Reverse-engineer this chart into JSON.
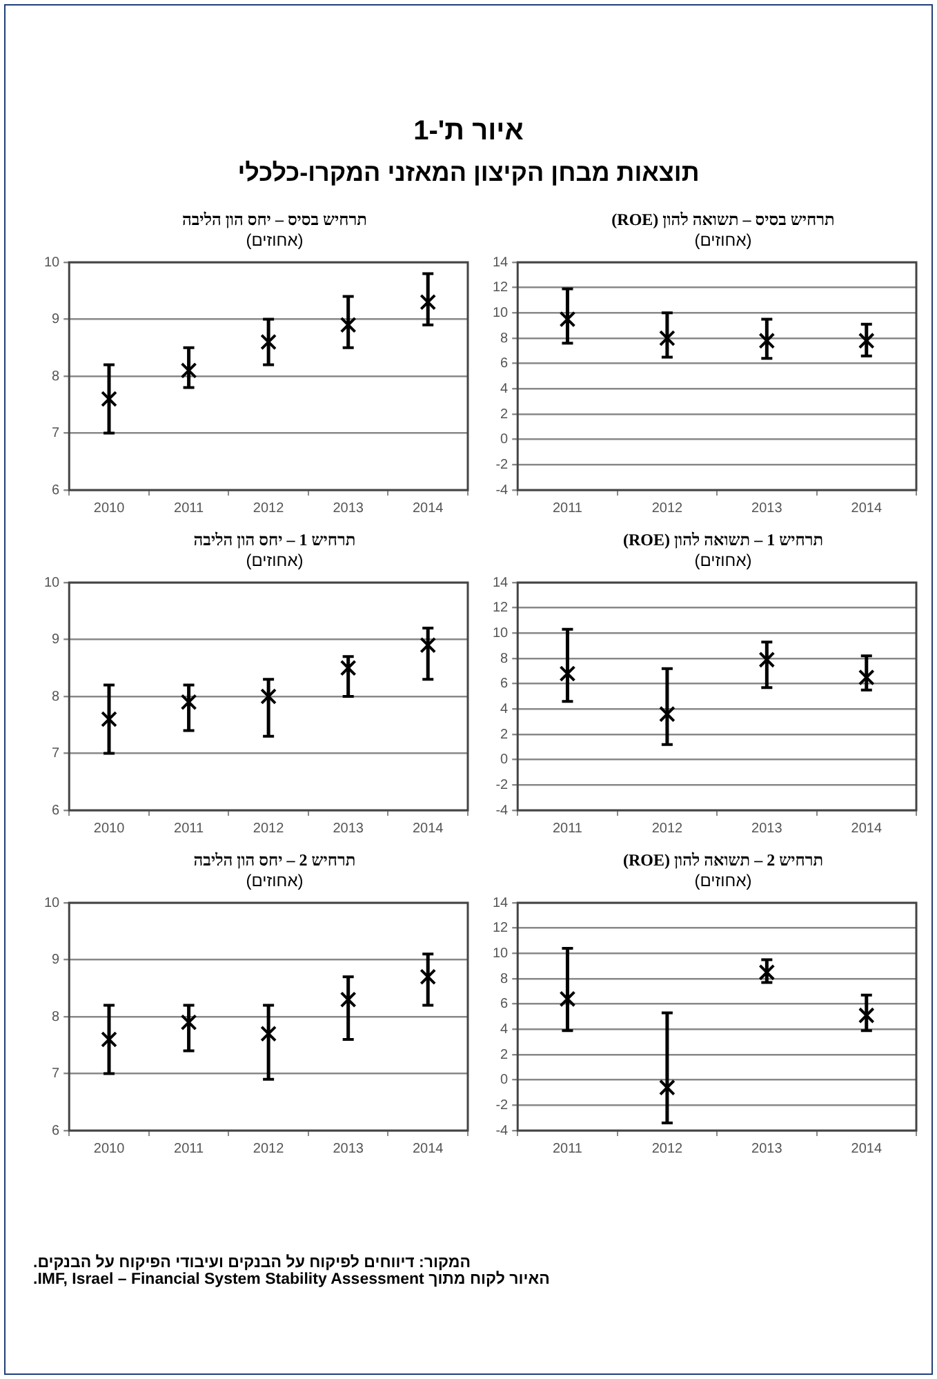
{
  "chart_data": [
    {
      "type": "other",
      "title": "איור ת'-1",
      "subtitle": "תוצאות מבחן הקיצון המאזני המקרו-כלכלי",
      "annotations": [
        "המקור: דיווחים לפיקוח על הבנקים ועיבודי הפיקוח על הבנקים.",
        "האיור לקוח מתוך IMF, Israel – Financial System Stability Assessment."
      ]
    },
    {
      "type": "scatter",
      "title": "תרחיש בסיס – תשואה להון (ROE)",
      "subtitle": "(אחוזים)",
      "categories": [
        "2011",
        "2012",
        "2013",
        "2014"
      ],
      "values": [
        9.5,
        8.0,
        7.8,
        7.8
      ],
      "errors": [
        [
          7.6,
          11.9
        ],
        [
          6.5,
          10.0
        ],
        [
          6.4,
          9.5
        ],
        [
          6.6,
          9.1
        ]
      ],
      "color": "#000000",
      "marker": "cross",
      "ylim": [
        -4,
        14
      ],
      "yticks": [
        -4,
        -2,
        0,
        2,
        4,
        6,
        8,
        10,
        12,
        14
      ],
      "grid": "y",
      "legend": false
    },
    {
      "type": "scatter",
      "title": "תרחיש בסיס – יחס הון הליבה",
      "subtitle": "(אחוזים)",
      "categories": [
        "2010",
        "2011",
        "2012",
        "2013",
        "2014"
      ],
      "values": [
        7.6,
        8.1,
        8.6,
        8.9,
        9.3
      ],
      "errors": [
        [
          7.0,
          8.2
        ],
        [
          7.8,
          8.5
        ],
        [
          8.2,
          9.0
        ],
        [
          8.5,
          9.4
        ],
        [
          8.9,
          9.8
        ]
      ],
      "color": "#000000",
      "marker": "cross",
      "ylim": [
        6,
        10
      ],
      "yticks": [
        6,
        7,
        8,
        9,
        10
      ],
      "grid": "y",
      "legend": false
    },
    {
      "type": "scatter",
      "title": "תרחיש 1 – תשואה להון (ROE)",
      "subtitle": "(אחוזים)",
      "categories": [
        "2011",
        "2012",
        "2013",
        "2014"
      ],
      "values": [
        6.8,
        3.6,
        7.9,
        6.5
      ],
      "errors": [
        [
          4.6,
          10.3
        ],
        [
          1.2,
          7.2
        ],
        [
          5.7,
          9.3
        ],
        [
          5.5,
          8.2
        ]
      ],
      "color": "#000000",
      "marker": "cross",
      "ylim": [
        -4,
        14
      ],
      "yticks": [
        -4,
        -2,
        0,
        2,
        4,
        6,
        8,
        10,
        12,
        14
      ],
      "grid": "y",
      "legend": false
    },
    {
      "type": "scatter",
      "title": "תרחיש 1 – יחס הון הליבה",
      "subtitle": "(אחוזים)",
      "categories": [
        "2010",
        "2011",
        "2012",
        "2013",
        "2014"
      ],
      "values": [
        7.6,
        7.9,
        8.0,
        8.5,
        8.9
      ],
      "errors": [
        [
          7.0,
          8.2
        ],
        [
          7.4,
          8.2
        ],
        [
          7.3,
          8.3
        ],
        [
          8.0,
          8.7
        ],
        [
          8.3,
          9.2
        ]
      ],
      "color": "#000000",
      "marker": "cross",
      "ylim": [
        6,
        10
      ],
      "yticks": [
        6,
        7,
        8,
        9,
        10
      ],
      "grid": "y",
      "legend": false
    },
    {
      "type": "scatter",
      "title": "תרחיש 2 – תשואה להון (ROE)",
      "subtitle": "(אחוזים)",
      "categories": [
        "2011",
        "2012",
        "2013",
        "2014"
      ],
      "values": [
        6.4,
        -0.6,
        8.5,
        5.1
      ],
      "errors": [
        [
          3.9,
          10.4
        ],
        [
          -3.4,
          5.3
        ],
        [
          7.7,
          9.5
        ],
        [
          3.9,
          6.7
        ]
      ],
      "color": "#000000",
      "marker": "cross",
      "ylim": [
        -4,
        14
      ],
      "yticks": [
        -4,
        -2,
        0,
        2,
        4,
        6,
        8,
        10,
        12,
        14
      ],
      "grid": "y",
      "legend": false
    },
    {
      "type": "scatter",
      "title": "תרחיש 2 – יחס הון הליבה",
      "subtitle": "(אחוזים)",
      "categories": [
        "2010",
        "2011",
        "2012",
        "2013",
        "2014"
      ],
      "values": [
        7.6,
        7.9,
        7.7,
        8.3,
        8.7
      ],
      "errors": [
        [
          7.0,
          8.2
        ],
        [
          7.4,
          8.2
        ],
        [
          6.9,
          8.2
        ],
        [
          7.6,
          8.7
        ],
        [
          8.2,
          9.1
        ]
      ],
      "color": "#000000",
      "marker": "cross",
      "ylim": [
        6,
        10
      ],
      "yticks": [
        6,
        7,
        8,
        9,
        10
      ],
      "grid": "y",
      "legend": false
    }
  ]
}
